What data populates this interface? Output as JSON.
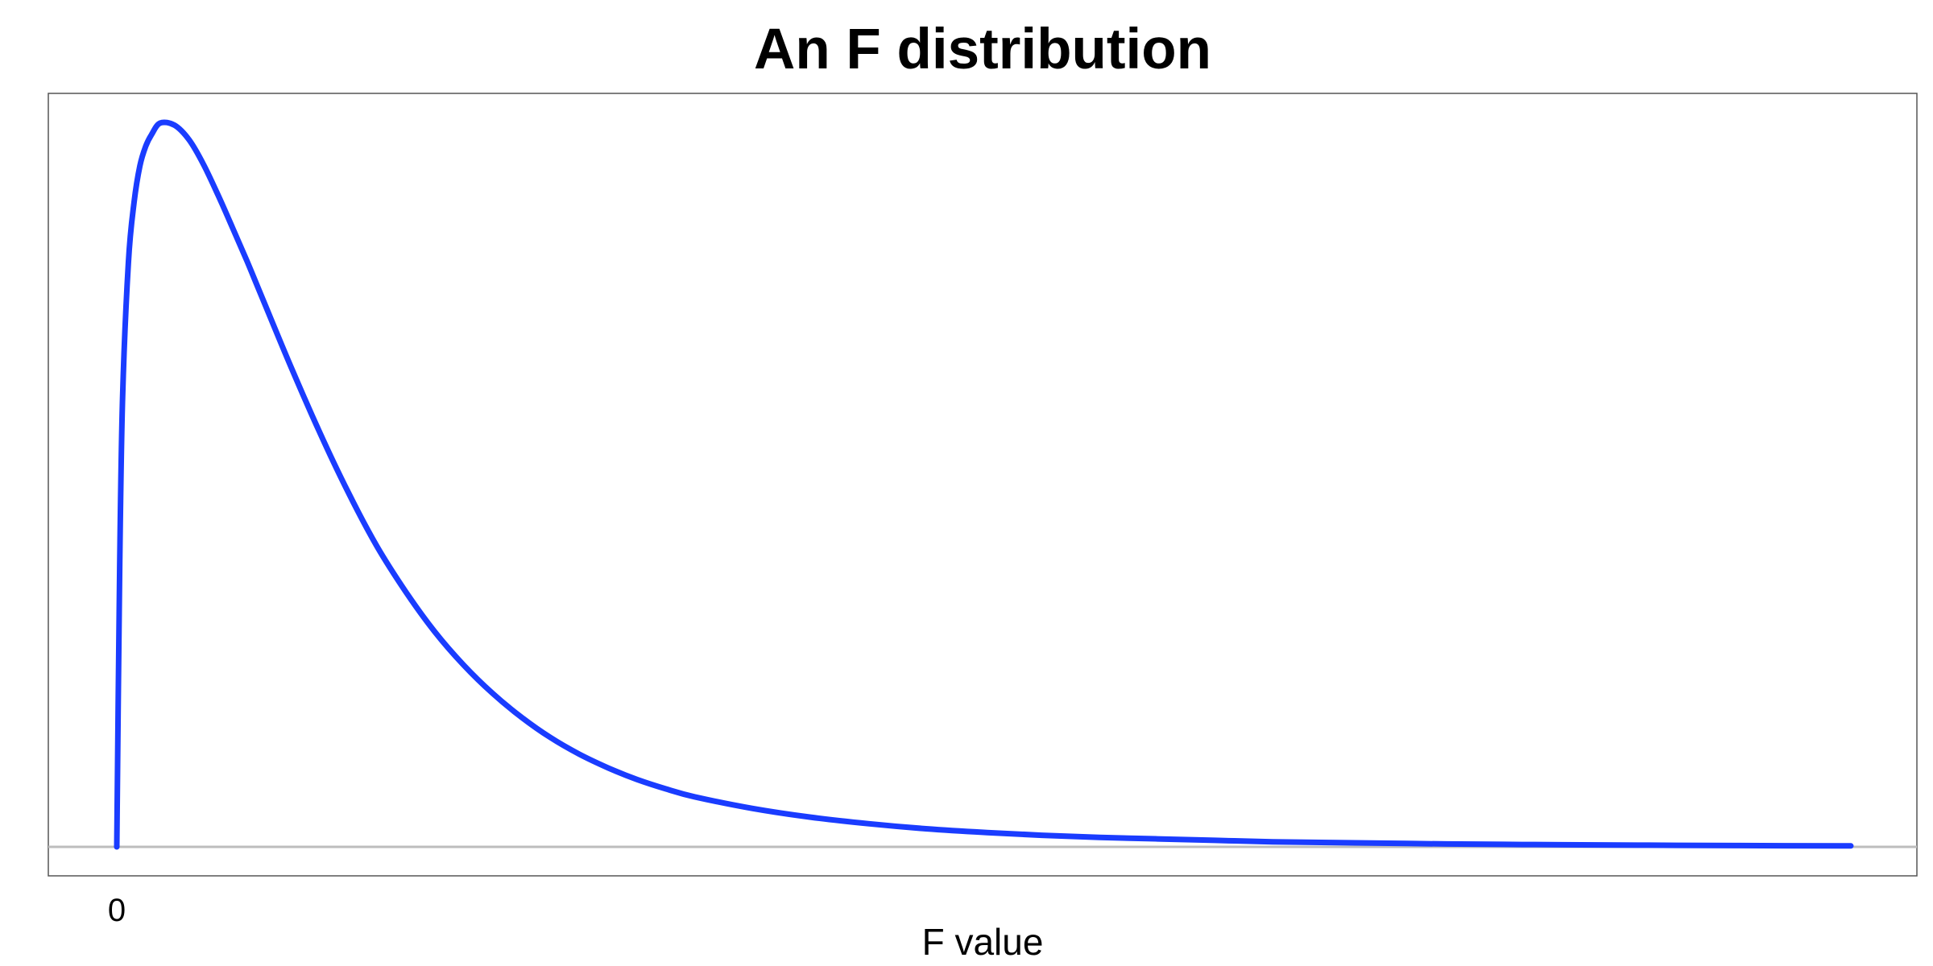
{
  "chart_data": {
    "type": "line",
    "title": "An F distribution",
    "xlabel": "F value",
    "ylabel": "",
    "x_tick_labels": [
      "0"
    ],
    "xlim": [
      0,
      6
    ],
    "ylim": [
      0,
      1
    ],
    "grid": false,
    "series": [
      {
        "color": "#1a3cff",
        "x": [
          0,
          0.01,
          0.02,
          0.04,
          0.06,
          0.08,
          0.1,
          0.12,
          0.15,
          0.2,
          0.25,
          0.3,
          0.35,
          0.4,
          0.45,
          0.5,
          0.6,
          0.7,
          0.8,
          0.9,
          1.0,
          1.1,
          1.2,
          1.3,
          1.4,
          1.5,
          1.6,
          1.7,
          1.8,
          1.9,
          2.0,
          2.2,
          2.4,
          2.6,
          2.8,
          3.0,
          3.2,
          3.4,
          3.6,
          3.8,
          4.0,
          4.2,
          4.4,
          4.6,
          4.8,
          5.0,
          5.3,
          5.6,
          6.0
        ],
        "y": [
          0,
          0.385,
          0.62,
          0.806,
          0.89,
          0.94,
          0.967,
          0.983,
          0.999,
          0.996,
          0.976,
          0.942,
          0.9,
          0.855,
          0.809,
          0.761,
          0.665,
          0.574,
          0.49,
          0.415,
          0.352,
          0.297,
          0.251,
          0.212,
          0.179,
          0.151,
          0.128,
          0.109,
          0.093,
          0.08,
          0.069,
          0.053,
          0.041,
          0.032,
          0.025,
          0.02,
          0.016,
          0.013,
          0.011,
          0.009,
          0.007,
          0.006,
          0.005,
          0.004,
          0.0034,
          0.0029,
          0.0023,
          0.0018,
          0.0013
        ]
      }
    ]
  },
  "colors": {
    "curve": "#1a3cff",
    "baseline": "#bdbdbd",
    "frame": "#555555"
  }
}
